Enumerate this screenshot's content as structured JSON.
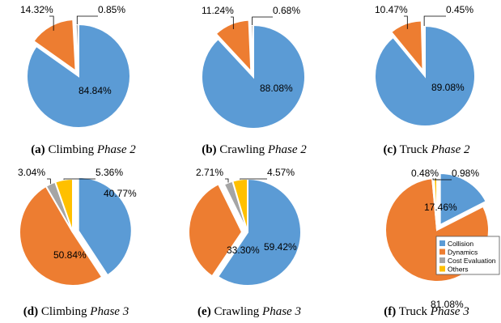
{
  "colors": {
    "collision": "#5B9BD5",
    "dynamics": "#ED7D31",
    "cost_evaluation": "#A5A5A5",
    "others": "#FFC000"
  },
  "legend": {
    "entries": [
      "Collision",
      "Dynamics",
      "Cost Evaluation",
      "Others"
    ]
  },
  "chart_data": [
    {
      "type": "pie",
      "caption_label": "(a)",
      "caption_text": "Climbing",
      "caption_phase": "Phase 2",
      "labels": [
        "Collision",
        "Dynamics",
        "Cost Evaluation"
      ],
      "values": [
        84.84,
        14.32,
        0.85
      ],
      "value_labels": [
        "84.84%",
        "14.32%",
        "0.85%"
      ]
    },
    {
      "type": "pie",
      "caption_label": "(b)",
      "caption_text": "Crawling",
      "caption_phase": "Phase 2",
      "labels": [
        "Collision",
        "Dynamics",
        "Cost Evaluation"
      ],
      "values": [
        88.08,
        11.24,
        0.68
      ],
      "value_labels": [
        "88.08%",
        "11.24%",
        "0.68%"
      ]
    },
    {
      "type": "pie",
      "caption_label": "(c)",
      "caption_text": "Truck",
      "caption_phase": "Phase 2",
      "labels": [
        "Collision",
        "Dynamics",
        "Cost Evaluation"
      ],
      "values": [
        89.08,
        10.47,
        0.45
      ],
      "value_labels": [
        "89.08%",
        "10.47%",
        "0.45%"
      ]
    },
    {
      "type": "pie",
      "caption_label": "(d)",
      "caption_text": "Climbing",
      "caption_phase": "Phase 3",
      "labels": [
        "Collision",
        "Dynamics",
        "Cost Evaluation",
        "Others"
      ],
      "values": [
        40.77,
        50.84,
        3.04,
        5.36
      ],
      "value_labels": [
        "40.77%",
        "50.84%",
        "3.04%",
        "5.36%"
      ]
    },
    {
      "type": "pie",
      "caption_label": "(e)",
      "caption_text": "Crawling",
      "caption_phase": "Phase 3",
      "labels": [
        "Collision",
        "Dynamics",
        "Cost Evaluation",
        "Others"
      ],
      "values": [
        59.42,
        33.3,
        2.71,
        4.57
      ],
      "value_labels": [
        "59.42%",
        "33.30%",
        "2.71%",
        "4.57%"
      ]
    },
    {
      "type": "pie",
      "caption_label": "(f)",
      "caption_text": "Truck",
      "caption_phase": "Phase 3",
      "labels": [
        "Collision",
        "Dynamics",
        "Cost Evaluation",
        "Others"
      ],
      "values": [
        17.46,
        81.08,
        0.48,
        0.98
      ],
      "value_labels": [
        "17.46%",
        "81.08%",
        "0.48%",
        "0.98%"
      ],
      "legend": "right"
    }
  ]
}
